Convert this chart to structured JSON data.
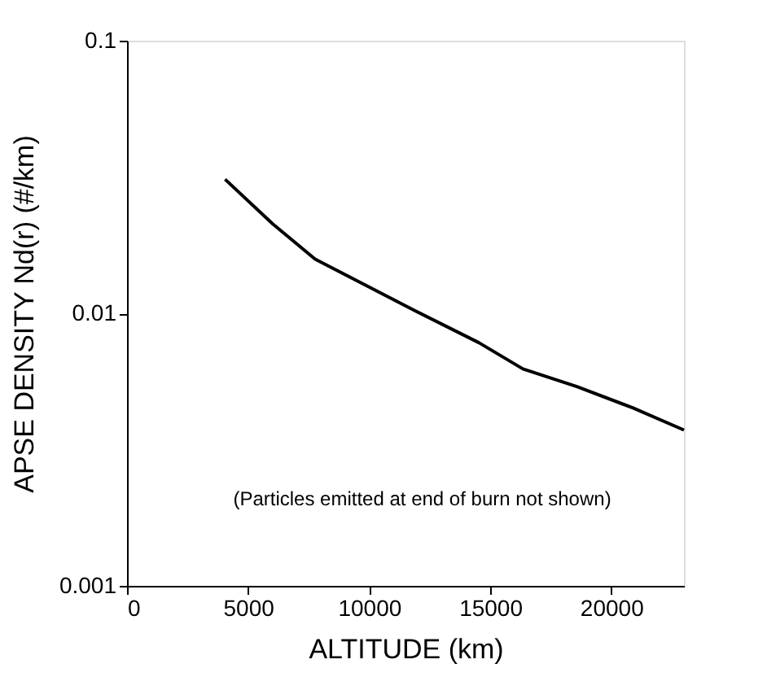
{
  "chart_data": {
    "type": "line",
    "xlabel": "ALTITUDE (km)",
    "ylabel": "APSE DENSITY Nd(r)    (#/km)",
    "x": [
      4050,
      6010,
      7770,
      11820,
      14530,
      16350,
      18580,
      20880,
      23000
    ],
    "series": [
      {
        "color": "#000000",
        "values": [
          0.031,
          0.0213,
          0.0158,
          0.0103,
          0.0078,
          0.00625,
          0.00538,
          0.0045,
          0.00373
        ]
      }
    ],
    "xlim": [
      0,
      23000
    ],
    "xticks": [
      0,
      5000,
      10000,
      15000,
      20000
    ],
    "ylim": [
      0.001,
      0.1
    ],
    "yticks": [
      0.001,
      0.01,
      0.1
    ],
    "log": "y",
    "grid": false,
    "legend": false,
    "marker": "none",
    "line_style": "solid",
    "annotations": [
      "(Particles emitted at end of burn not shown)"
    ]
  }
}
